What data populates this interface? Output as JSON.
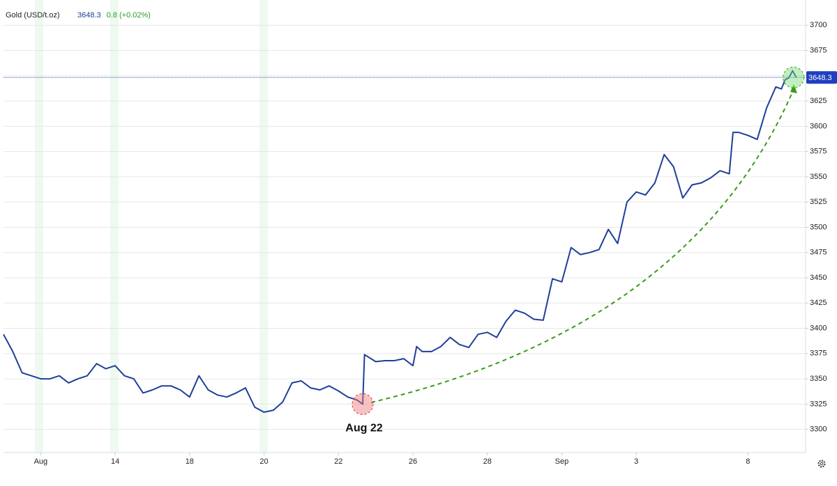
{
  "chart_data": {
    "type": "line",
    "series": [
      {
        "name": "Gold (USD/t.oz)",
        "color": "#1f3f99",
        "values": [
          3394,
          3377,
          3356,
          3353,
          3350,
          3350,
          3353,
          3346,
          3350,
          3353,
          3365,
          3360,
          3363,
          3353,
          3350,
          3336,
          3339,
          3343,
          3343,
          3339,
          3332,
          3353,
          3339,
          3334,
          3332,
          3336,
          3341,
          3322,
          3317,
          3319,
          3327,
          3346,
          3348,
          3341,
          3339,
          3343,
          3338,
          3332,
          3329,
          3325,
          3374,
          3367,
          3368,
          3368,
          3370,
          3363,
          3382,
          3377,
          3377,
          3382,
          3391,
          3384,
          3381,
          3394,
          3396,
          3391,
          3407,
          3418,
          3415,
          3409,
          3408,
          3449,
          3446,
          3480,
          3473,
          3475,
          3478,
          3498,
          3484,
          3525,
          3535,
          3532,
          3544,
          3572,
          3560,
          3529,
          3542,
          3544,
          3549,
          3556,
          3553,
          3594,
          3594,
          3591,
          3587,
          3618,
          3639,
          3637,
          3646,
          3648,
          3655,
          3648.3
        ]
      }
    ],
    "x": [
      -1,
      -0.75,
      -0.5,
      -0.25,
      0,
      0.25,
      0.5,
      0.75,
      1,
      1.25,
      1.5,
      1.75,
      2,
      2.25,
      2.5,
      2.75,
      3,
      3.25,
      3.5,
      3.75,
      4,
      4.25,
      4.5,
      4.75,
      5,
      5.25,
      5.5,
      5.75,
      6,
      6.25,
      6.5,
      6.75,
      7,
      7.25,
      7.5,
      7.75,
      8,
      8.25,
      8.5,
      8.65,
      8.7,
      9,
      9.25,
      9.5,
      9.75,
      10,
      10.1,
      10.25,
      10.5,
      10.75,
      11,
      11.25,
      11.5,
      11.75,
      12,
      12.25,
      12.5,
      12.75,
      13,
      13.25,
      13.5,
      13.75,
      14,
      14.25,
      14.5,
      14.75,
      15,
      15.25,
      15.5,
      15.75,
      16,
      16.25,
      16.5,
      16.75,
      17,
      17.25,
      17.5,
      17.75,
      18,
      18.25,
      18.5,
      18.6,
      18.75,
      19,
      19.25,
      19.5,
      19.75,
      19.9,
      20,
      20.1,
      20.2,
      20.3
    ],
    "xlim": [
      -1,
      20.55
    ],
    "xticks": [
      {
        "value": 0,
        "label": "Aug"
      },
      {
        "value": 2,
        "label": "14"
      },
      {
        "value": 4,
        "label": "18"
      },
      {
        "value": 6,
        "label": "20"
      },
      {
        "value": 8,
        "label": "22"
      },
      {
        "value": 10,
        "label": "26"
      },
      {
        "value": 12,
        "label": "28"
      },
      {
        "value": 14,
        "label": "Sep"
      },
      {
        "value": 16,
        "label": "3"
      },
      {
        "value": 19,
        "label": "8"
      }
    ],
    "ylim": [
      3277,
      3725
    ],
    "yticks": [
      3300,
      3325,
      3350,
      3375,
      3400,
      3425,
      3450,
      3475,
      3500,
      3525,
      3550,
      3575,
      3600,
      3625,
      3650,
      3675,
      3700
    ],
    "grid": true,
    "last_price": 3648.3,
    "change": "0.8 (+0.02%)",
    "annotations": [
      {
        "text": "Aug 22"
      }
    ]
  }
}
